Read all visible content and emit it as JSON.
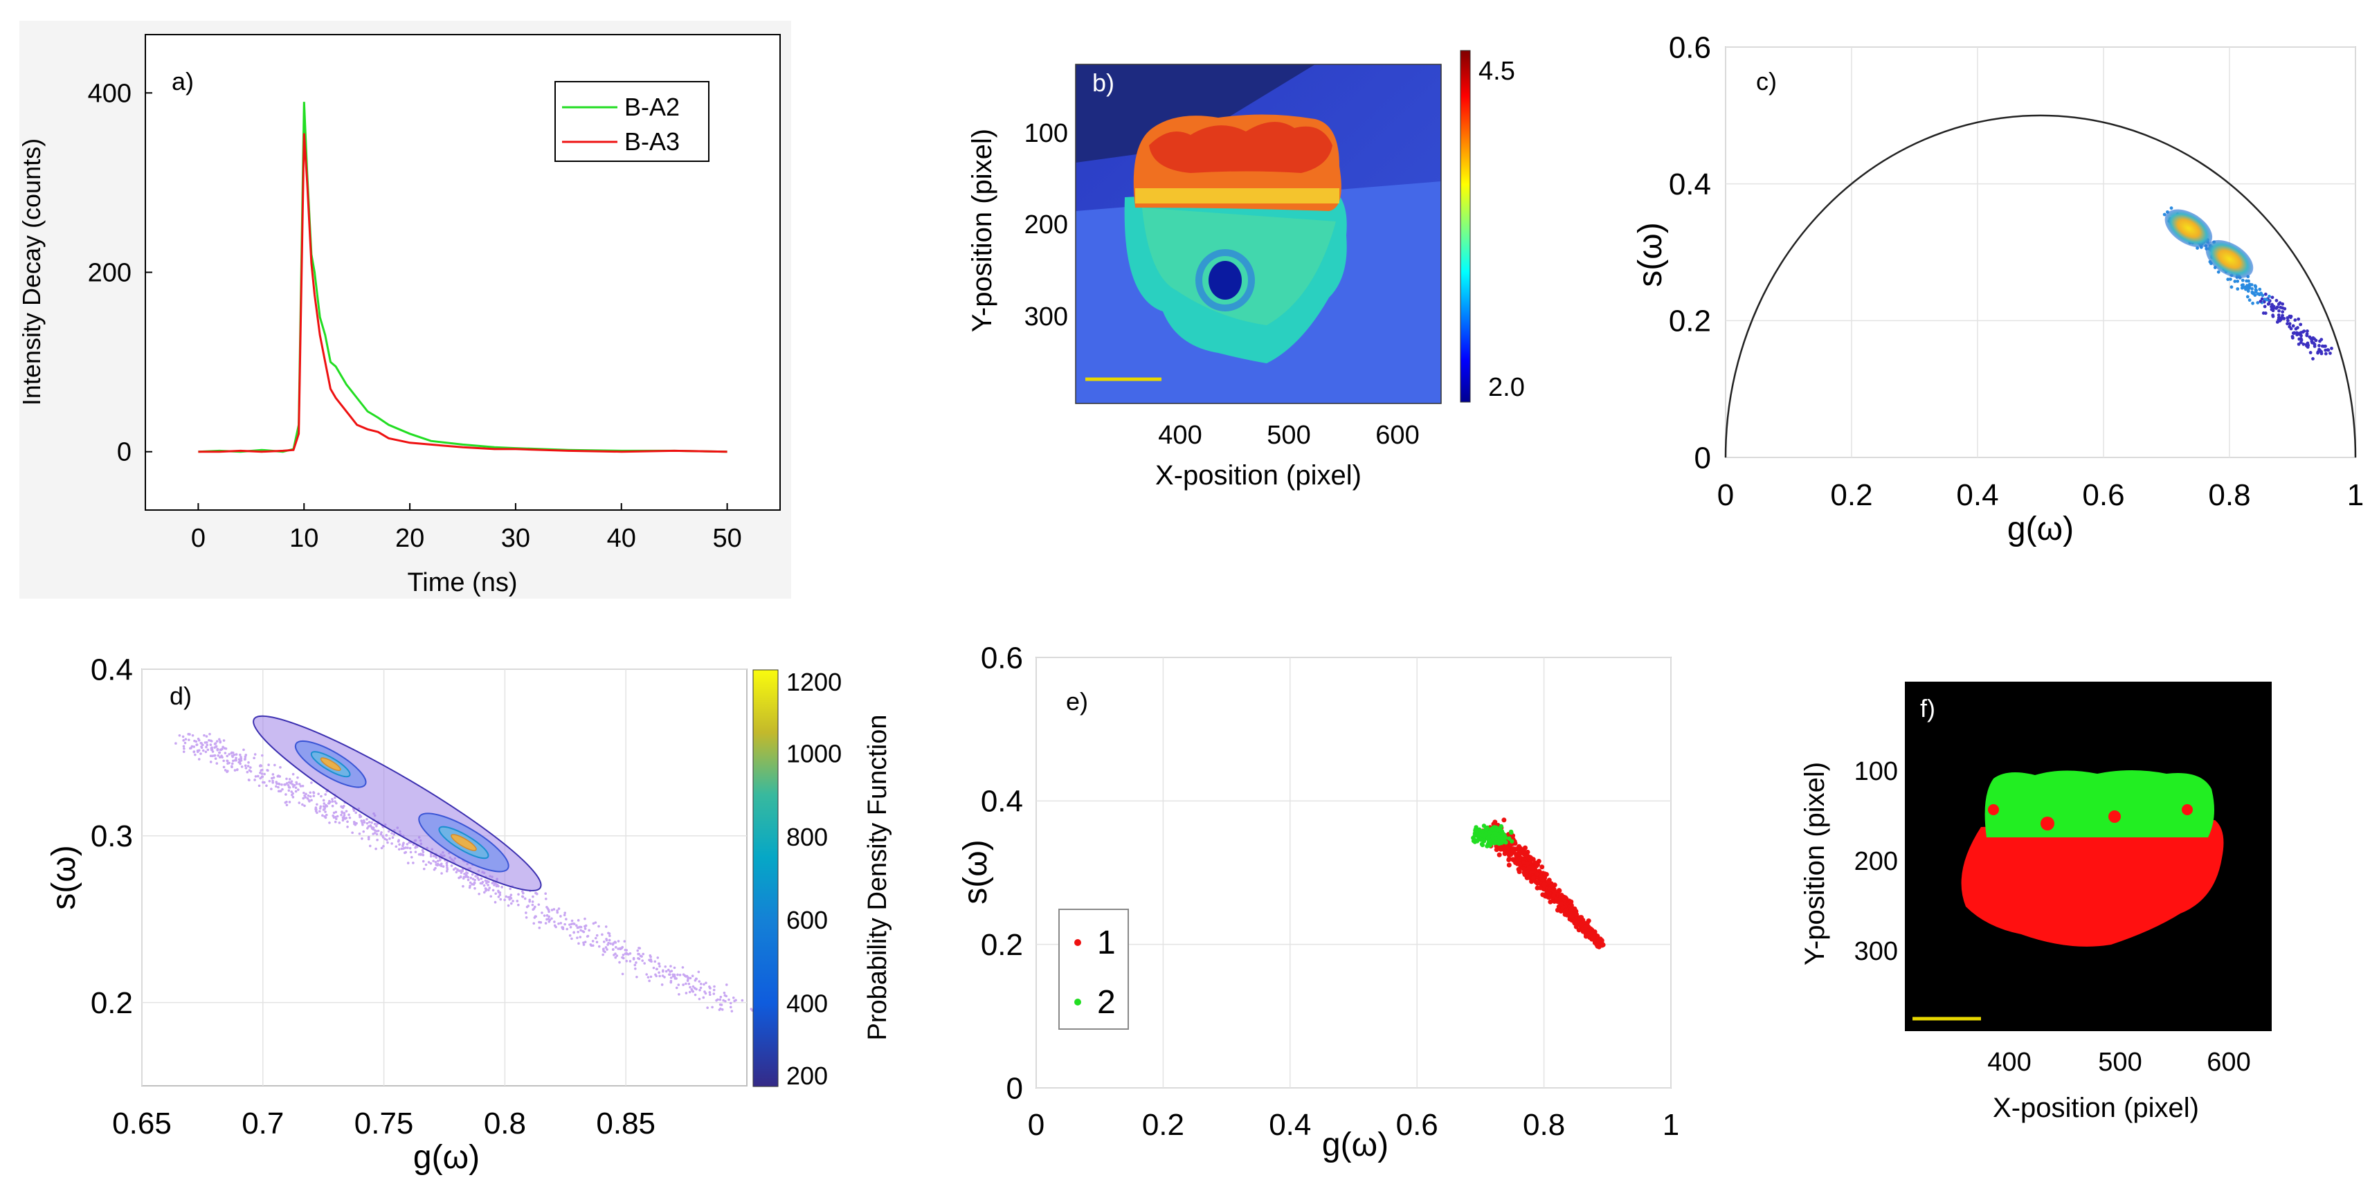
{
  "figure": {
    "panels": {
      "a": {
        "label": "a)",
        "chart_ref": 0
      },
      "b": {
        "label": "b)",
        "xlabel": "X-position (pixel)",
        "ylabel": "Y-position (pixel)",
        "xticks": [
          "400",
          "500",
          "600"
        ],
        "yticks": [
          "100",
          "200",
          "300"
        ],
        "colorbar_max": "4.5",
        "colorbar_min": "2.0"
      },
      "c": {
        "label": "c)"
      },
      "d": {
        "label": "d)",
        "colorbar_label": "Probability Density Function"
      },
      "e": {
        "label": "e)"
      },
      "f": {
        "label": "f)",
        "xlabel": "X-position (pixel)",
        "ylabel": "Y-position (pixel)",
        "xticks": [
          "400",
          "500",
          "600"
        ],
        "yticks": [
          "100",
          "200",
          "300"
        ]
      }
    },
    "colors": {
      "green": "#22dd22",
      "red": "#ee1111",
      "ellipse": "#3b2fb0",
      "scale_bar": "#e8d800"
    }
  },
  "chart_data": [
    {
      "panel": "a",
      "type": "line",
      "xlabel": "Time (ns)",
      "ylabel": "Intensity Decay (counts)",
      "xlim": [
        -5,
        55
      ],
      "ylim": [
        -65,
        465
      ],
      "xticks": [
        0,
        10,
        20,
        30,
        40,
        50
      ],
      "yticks": [
        0,
        200,
        400
      ],
      "legend": "top-right",
      "series": [
        {
          "name": "B-A2",
          "color": "#22dd22",
          "x": [
            0,
            2,
            4,
            6,
            8,
            9,
            9.5,
            10,
            10.3,
            10.7,
            11,
            11.5,
            12,
            12.5,
            13,
            14,
            15,
            16,
            17,
            18,
            20,
            22,
            25,
            28,
            30,
            35,
            40,
            45,
            50
          ],
          "y": [
            0,
            1,
            0,
            2,
            0,
            3,
            30,
            390,
            310,
            220,
            200,
            150,
            130,
            100,
            95,
            75,
            60,
            45,
            38,
            30,
            20,
            12,
            8,
            5,
            4,
            2,
            1,
            1,
            0
          ]
        },
        {
          "name": "B-A3",
          "color": "#ee1111",
          "x": [
            0,
            2,
            4,
            6,
            8,
            9,
            9.5,
            10,
            10.3,
            10.7,
            11,
            11.5,
            12,
            12.5,
            13,
            14,
            15,
            16,
            17,
            18,
            20,
            22,
            25,
            28,
            30,
            35,
            40,
            45,
            50
          ],
          "y": [
            0,
            0,
            1,
            0,
            1,
            2,
            20,
            355,
            300,
            210,
            175,
            130,
            100,
            70,
            60,
            45,
            30,
            25,
            22,
            15,
            10,
            8,
            5,
            3,
            3,
            1,
            0,
            1,
            0
          ]
        }
      ]
    },
    {
      "panel": "c",
      "type": "scatter",
      "xlabel": "g(ω)",
      "ylabel": "s(ω)",
      "xlim": [
        0,
        1
      ],
      "ylim": [
        0,
        0.6
      ],
      "xticks": [
        0,
        0.2,
        0.4,
        0.6,
        0.8,
        1
      ],
      "yticks": [
        0,
        0.2,
        0.4,
        0.6
      ],
      "grid": true,
      "universal_semicircle": {
        "center": [
          0.5,
          0
        ],
        "radius": 0.5
      },
      "clusters": [
        {
          "center": [
            0.735,
            0.335
          ],
          "density": "high"
        },
        {
          "center": [
            0.8,
            0.29
          ],
          "density": "high"
        }
      ],
      "tail": {
        "from": [
          0.7,
          0.355
        ],
        "to": [
          0.96,
          0.145
        ]
      }
    },
    {
      "panel": "d",
      "type": "scatter",
      "xlabel": "g(ω)",
      "ylabel": "s(ω)",
      "xlim": [
        0.65,
        0.9
      ],
      "ylim": [
        0.15,
        0.4
      ],
      "xticks": [
        0.65,
        0.7,
        0.75,
        0.8,
        0.85
      ],
      "yticks": [
        0.2,
        0.3,
        0.4
      ],
      "grid": true,
      "colorbar": {
        "label": "Probability Density Function",
        "range": [
          200,
          1200
        ],
        "ticks": [
          200,
          400,
          600,
          800,
          1000,
          1200
        ]
      },
      "contour_centers": [
        [
          0.728,
          0.343
        ],
        [
          0.783,
          0.296
        ]
      ],
      "scatter_band": {
        "from": [
          0.67,
          0.358
        ],
        "to": [
          0.895,
          0.198
        ]
      }
    },
    {
      "panel": "e",
      "type": "scatter",
      "xlabel": "g(ω)",
      "ylabel": "s(ω)",
      "xlim": [
        0,
        1
      ],
      "ylim": [
        0,
        0.6
      ],
      "xticks": [
        0,
        0.2,
        0.4,
        0.6,
        0.8,
        1
      ],
      "yticks": [
        0,
        0.2,
        0.4,
        0.6
      ],
      "grid": true,
      "legend": "bottom-left",
      "series": [
        {
          "name": "1",
          "color": "#ee1111",
          "from": [
            0.72,
            0.36
          ],
          "to": [
            0.89,
            0.2
          ]
        },
        {
          "name": "2",
          "color": "#22dd22",
          "center": [
            0.72,
            0.352
          ]
        }
      ]
    }
  ]
}
